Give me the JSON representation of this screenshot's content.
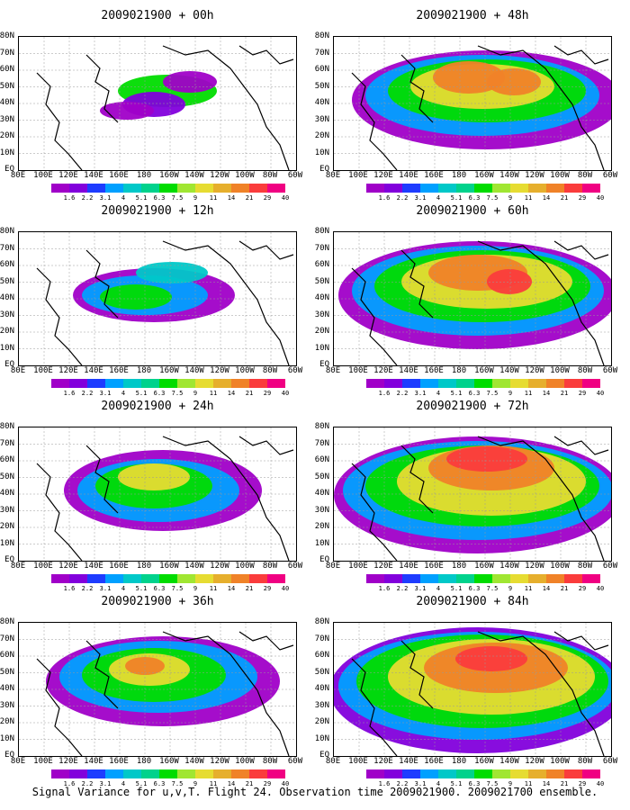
{
  "colorbar": {
    "levels": [
      "1.6",
      "2.2",
      "3.1",
      "4",
      "5.1",
      "6.3",
      "7.5",
      "9",
      "11",
      "14",
      "21",
      "29",
      "40"
    ],
    "colors": [
      "#a000c8",
      "#8200dc",
      "#1e3cff",
      "#00a0ff",
      "#00c8c8",
      "#00d28c",
      "#00dc00",
      "#a0e632",
      "#e6dc32",
      "#e6af2d",
      "#f08228",
      "#fa3c3c",
      "#f00082"
    ]
  },
  "lat_labels": [
    "80N",
    "70N",
    "60N",
    "50N",
    "40N",
    "30N",
    "20N",
    "10N",
    "EQ"
  ],
  "lon_labels": [
    "80E",
    "100E",
    "120E",
    "140E",
    "160E",
    "180",
    "160W",
    "140W",
    "120W",
    "100W",
    "80W",
    "60W"
  ],
  "panels": [
    {
      "title": "2009021900 + 00h",
      "level": 1
    },
    {
      "title": "2009021900 + 48h",
      "level": 5
    },
    {
      "title": "2009021900 + 12h",
      "level": 2
    },
    {
      "title": "2009021900 + 60h",
      "level": 6
    },
    {
      "title": "2009021900 + 24h",
      "level": 3
    },
    {
      "title": "2009021900 + 72h",
      "level": 7
    },
    {
      "title": "2009021900 + 36h",
      "level": 4
    },
    {
      "title": "2009021900 + 84h",
      "level": 8
    }
  ],
  "caption": "Signal Variance for u,v,T. Flight 24. Observation time 2009021900. 2009021700 ensemble."
}
